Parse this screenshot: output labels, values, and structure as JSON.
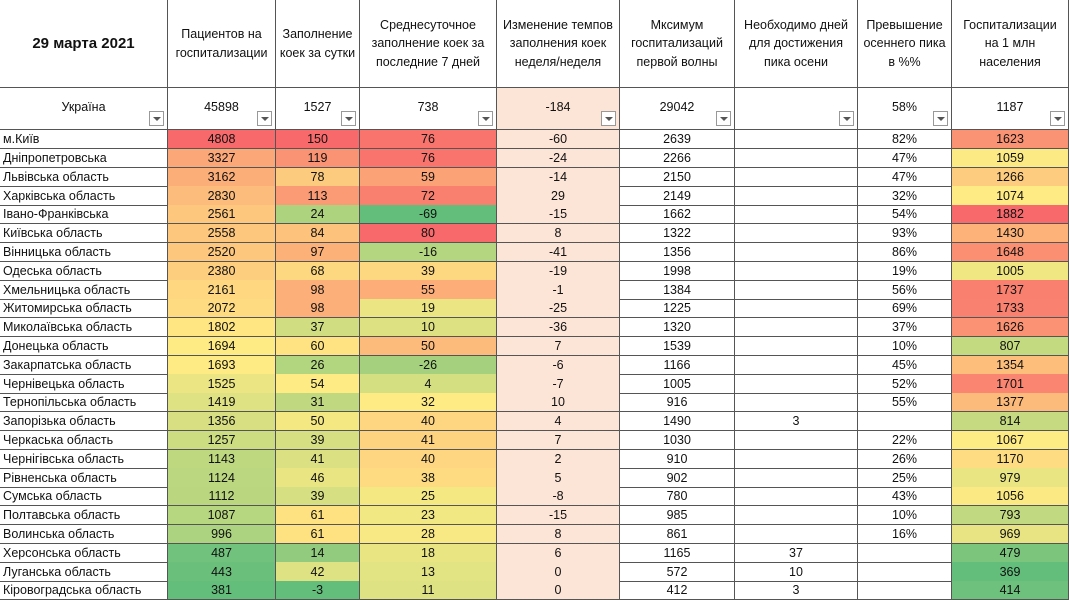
{
  "table": {
    "headers": [
      "29 марта 2021",
      "Пациентов на госпитализации",
      "Заполнение коек за сутки",
      "Среднесуточное заполнение коек за последние 7 дней",
      "Изменение темпов заполнения коек неделя/неделя",
      "Мксимум госпитализаций первой волны",
      "Необходимо дней для достижения пика осени",
      "Превышение осеннего пика в %%",
      "Госпитализации на 1 млн населения"
    ],
    "summary": [
      "Україна",
      45898,
      1527,
      738,
      -184,
      29042,
      null,
      "58%",
      1187
    ],
    "rows": [
      [
        "м.Київ",
        4808,
        150,
        76,
        -60,
        2639,
        null,
        "82%",
        1623
      ],
      [
        "Дніпропетровська",
        3327,
        119,
        76,
        -24,
        2266,
        null,
        "47%",
        1059
      ],
      [
        "Львівська область",
        3162,
        78,
        59,
        -14,
        2150,
        null,
        "47%",
        1266
      ],
      [
        "Харківська область",
        2830,
        113,
        72,
        29,
        2149,
        null,
        "32%",
        1074
      ],
      [
        "Івано-Франківська",
        2561,
        24,
        -69,
        -15,
        1662,
        null,
        "54%",
        1882
      ],
      [
        "Київська область",
        2558,
        84,
        80,
        8,
        1322,
        null,
        "93%",
        1430
      ],
      [
        "Вінницька область",
        2520,
        97,
        -16,
        -41,
        1356,
        null,
        "86%",
        1648
      ],
      [
        "Одеська область",
        2380,
        68,
        39,
        -19,
        1998,
        null,
        "19%",
        1005
      ],
      [
        "Хмельницька область",
        2161,
        98,
        55,
        -1,
        1384,
        null,
        "56%",
        1737
      ],
      [
        "Житомирська область",
        2072,
        98,
        19,
        -25,
        1225,
        null,
        "69%",
        1733
      ],
      [
        "Миколаївська область",
        1802,
        37,
        10,
        -36,
        1320,
        null,
        "37%",
        1626
      ],
      [
        "Донецька область",
        1694,
        60,
        50,
        7,
        1539,
        null,
        "10%",
        807
      ],
      [
        "Закарпатська область",
        1693,
        26,
        -26,
        -6,
        1166,
        null,
        "45%",
        1354
      ],
      [
        "Чернівецька область",
        1525,
        54,
        4,
        -7,
        1005,
        null,
        "52%",
        1701
      ],
      [
        "Тернопільська область",
        1419,
        31,
        32,
        10,
        916,
        null,
        "55%",
        1377
      ],
      [
        "Запорізька область",
        1356,
        50,
        40,
        4,
        1490,
        3,
        null,
        814
      ],
      [
        "Черкаська область",
        1257,
        39,
        41,
        7,
        1030,
        null,
        "22%",
        1067
      ],
      [
        "Чернігівська область",
        1143,
        41,
        40,
        2,
        910,
        null,
        "26%",
        1170
      ],
      [
        "Рівненська область",
        1124,
        46,
        38,
        5,
        902,
        null,
        "25%",
        979
      ],
      [
        "Сумська область",
        1112,
        39,
        25,
        -8,
        780,
        null,
        "43%",
        1056
      ],
      [
        "Полтавська область",
        1087,
        61,
        23,
        -15,
        985,
        null,
        "10%",
        793
      ],
      [
        "Волинська область",
        996,
        61,
        28,
        8,
        861,
        null,
        "16%",
        969
      ],
      [
        "Херсонська область",
        487,
        14,
        18,
        6,
        1165,
        37,
        null,
        479
      ],
      [
        "Луганська область",
        443,
        42,
        13,
        0,
        572,
        10,
        null,
        369
      ],
      [
        "Кіровоградська область",
        381,
        -3,
        11,
        0,
        412,
        3,
        null,
        414
      ]
    ]
  }
}
